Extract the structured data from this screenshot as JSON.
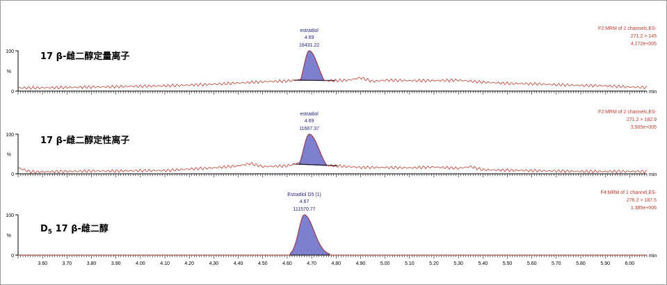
{
  "chart_data": {
    "type": "line",
    "x_unit": "min",
    "xlim": [
      3.5,
      6.07
    ],
    "x_ticks": [
      "3.60",
      "3.70",
      "3.80",
      "3.90",
      "4.00",
      "4.10",
      "4.20",
      "4.30",
      "4.40",
      "4.50",
      "4.60",
      "4.70",
      "4.80",
      "4.90",
      "5.00",
      "5.10",
      "5.20",
      "5.30",
      "5.40",
      "5.50",
      "5.60",
      "5.70",
      "5.80",
      "5.90",
      "6.00"
    ],
    "panels": [
      {
        "title_prefix": "17",
        "title_beta": "β",
        "title_suffix": "-雌二醇定量离子",
        "header": [
          "F2:MRM of 2 channels,ES-",
          "271.2 > 145",
          "4.172e+005"
        ],
        "ylabel": "%",
        "y_ticks": [
          "100",
          "0"
        ],
        "peak": {
          "name": "estradiol",
          "rt": "4.69",
          "area": "18431.22",
          "center": 4.69,
          "height": 100,
          "width": 0.022
        },
        "baseline": [
          [
            3.5,
            8
          ],
          [
            3.6,
            8
          ],
          [
            3.7,
            9
          ],
          [
            3.8,
            10
          ],
          [
            3.9,
            11
          ],
          [
            4.0,
            12
          ],
          [
            4.1,
            13
          ],
          [
            4.2,
            15
          ],
          [
            4.3,
            17
          ],
          [
            4.4,
            20
          ],
          [
            4.5,
            23
          ],
          [
            4.6,
            25
          ],
          [
            4.65,
            28
          ],
          [
            4.7,
            27
          ],
          [
            4.75,
            26
          ],
          [
            4.8,
            26
          ],
          [
            4.85,
            27
          ],
          [
            4.9,
            33
          ],
          [
            4.95,
            24
          ],
          [
            5.0,
            27
          ],
          [
            5.1,
            26
          ],
          [
            5.2,
            26
          ],
          [
            5.3,
            27
          ],
          [
            5.4,
            22
          ],
          [
            5.5,
            19
          ],
          [
            5.6,
            18
          ],
          [
            5.7,
            16
          ],
          [
            5.8,
            14
          ],
          [
            5.9,
            13
          ],
          [
            6.0,
            10
          ],
          [
            6.07,
            9
          ]
        ]
      },
      {
        "title_prefix": "17",
        "title_beta": "β",
        "title_suffix": "-雌二醇定性离子",
        "header": [
          "F2:MRM of 2 channels,ES-",
          "271.2 > 182.9",
          "3.505e+005"
        ],
        "ylabel": "%",
        "y_ticks": [
          "100",
          "0"
        ],
        "peak": {
          "name": "estradiol",
          "rt": "4.69",
          "area": "11667.37",
          "center": 4.69,
          "height": 100,
          "width": 0.024
        },
        "baseline": [
          [
            3.5,
            15
          ],
          [
            3.55,
            5
          ],
          [
            3.6,
            5
          ],
          [
            3.7,
            6
          ],
          [
            3.8,
            7
          ],
          [
            3.9,
            7
          ],
          [
            4.0,
            8
          ],
          [
            4.1,
            8
          ],
          [
            4.2,
            12
          ],
          [
            4.3,
            15
          ],
          [
            4.4,
            20
          ],
          [
            4.45,
            26
          ],
          [
            4.5,
            18
          ],
          [
            4.6,
            20
          ],
          [
            4.65,
            28
          ],
          [
            4.7,
            26
          ],
          [
            4.75,
            22
          ],
          [
            4.8,
            20
          ],
          [
            4.9,
            16
          ],
          [
            5.0,
            16
          ],
          [
            5.1,
            15
          ],
          [
            5.2,
            17
          ],
          [
            5.3,
            14
          ],
          [
            5.35,
            18
          ],
          [
            5.4,
            10
          ],
          [
            5.5,
            9
          ],
          [
            5.6,
            8
          ],
          [
            5.7,
            7
          ],
          [
            5.8,
            6
          ],
          [
            5.9,
            6
          ],
          [
            6.0,
            6
          ],
          [
            6.07,
            6
          ]
        ]
      },
      {
        "title_prefix": "D",
        "title_sub": "5",
        "title_mid": " 17 ",
        "title_beta": "β",
        "title_suffix": "-雌二醇",
        "header": [
          "F4:MRM of 1 channel,ES-",
          "276.2 > 187.5",
          "1.385e+006"
        ],
        "ylabel": "%",
        "y_ticks": [
          "100",
          "0"
        ],
        "peak": {
          "name": "Estradiol D5 (1)",
          "rt": "4.67",
          "area": "111570.77",
          "center": 4.67,
          "height": 100,
          "width": 0.023
        },
        "baseline": [
          [
            3.5,
            0
          ],
          [
            6.07,
            0
          ]
        ]
      }
    ]
  }
}
